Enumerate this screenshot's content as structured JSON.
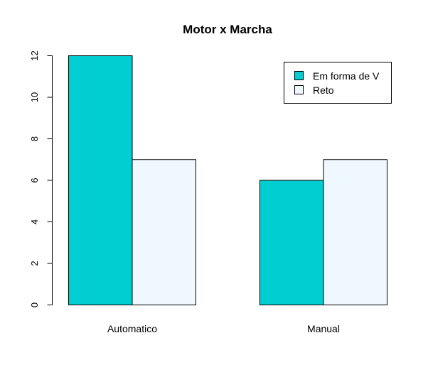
{
  "chart_data": {
    "type": "bar",
    "title": "Motor x Marcha",
    "xlabel": "",
    "ylabel": "",
    "categories": [
      "Automatico",
      "Manual"
    ],
    "series": [
      {
        "name": "Em forma de V",
        "values": [
          12,
          6
        ],
        "color": "#00CED1"
      },
      {
        "name": "Reto",
        "values": [
          7,
          7
        ],
        "color": "#F0F8FF"
      }
    ],
    "ylim": [
      0,
      12
    ],
    "yticks": [
      "0",
      "2",
      "4",
      "6",
      "8",
      "10",
      "12"
    ],
    "grid": false,
    "legend_position": "top-right",
    "grouped": true
  }
}
